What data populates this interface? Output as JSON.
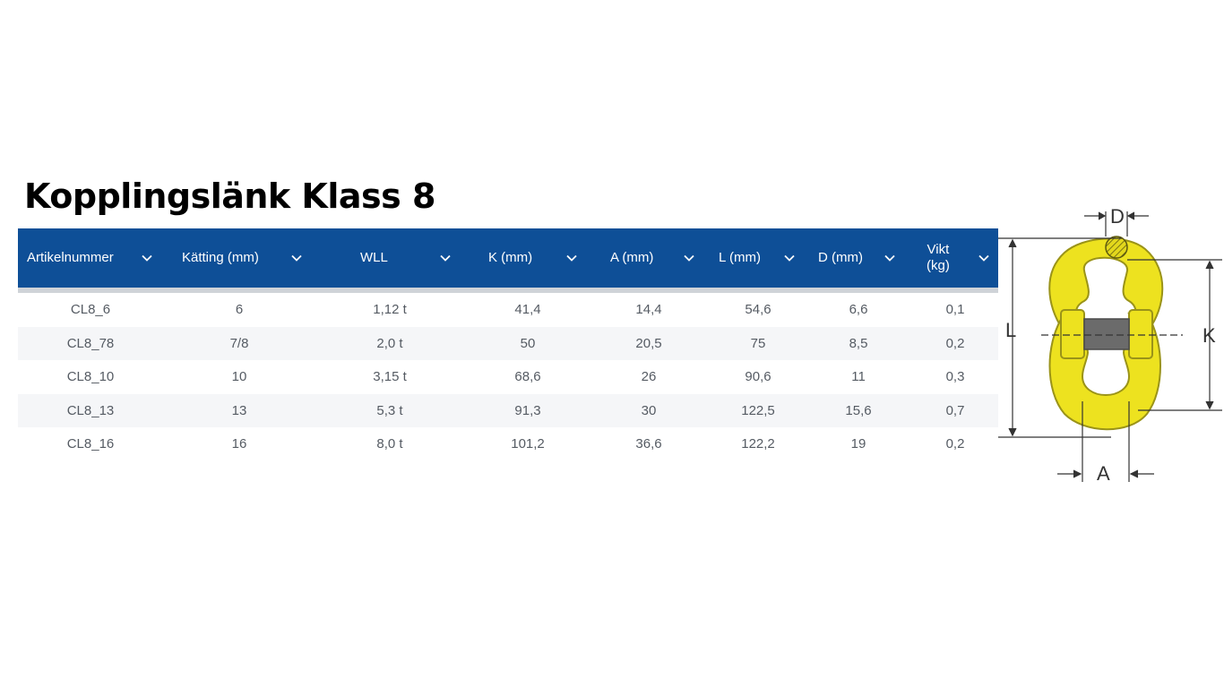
{
  "title": "Kopplingslänk Klass 8",
  "table": {
    "headers": [
      {
        "label": "Artikelnummer",
        "line2": ""
      },
      {
        "label": "Kätting (mm)",
        "line2": ""
      },
      {
        "label": "WLL",
        "line2": ""
      },
      {
        "label": "K (mm)",
        "line2": ""
      },
      {
        "label": "A (mm)",
        "line2": ""
      },
      {
        "label": "L (mm)",
        "line2": ""
      },
      {
        "label": "D (mm)",
        "line2": ""
      },
      {
        "label": "Vikt",
        "line2": "(kg)"
      }
    ],
    "rows": [
      [
        "CL8_6",
        "6",
        "1,12 t",
        "41,4",
        "14,4",
        "54,6",
        "6,6",
        "0,1"
      ],
      [
        "CL8_78",
        "7/8",
        "2,0 t",
        "50",
        "20,5",
        "75",
        "8,5",
        "0,2"
      ],
      [
        "CL8_10",
        "10",
        "3,15 t",
        "68,6",
        "26",
        "90,6",
        "11",
        "0,3"
      ],
      [
        "CL8_13",
        "13",
        "5,3 t",
        "91,3",
        "30",
        "122,5",
        "15,6",
        "0,7"
      ],
      [
        "CL8_16",
        "16",
        "8,0 t",
        "101,2",
        "36,6",
        "122,2",
        "19",
        "0,2"
      ]
    ]
  },
  "diagram": {
    "labels": {
      "d": "D",
      "l": "L",
      "k": "K",
      "a": "A"
    },
    "colors": {
      "link": "#ede21f",
      "link_edge": "#9a9318",
      "pin": "#6b6b6b",
      "line": "#333333"
    }
  },
  "colors": {
    "header_bg": "#0e4f97",
    "header_text": "#ffffff",
    "row_alt": "#f5f6f8",
    "cell_text": "#555b63"
  },
  "icons": {
    "sort": "chevron-down-icon"
  }
}
